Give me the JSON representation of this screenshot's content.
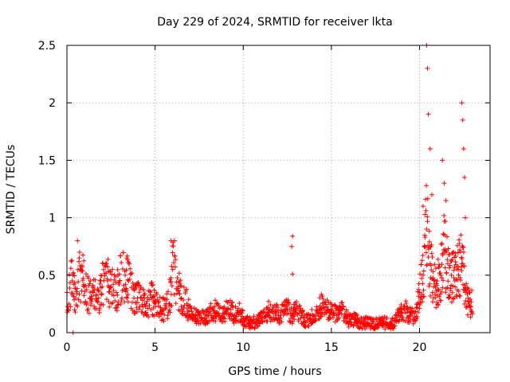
{
  "chart_data": {
    "type": "scatter",
    "title": "Day 229 of 2024, SRMTID for receiver lkta",
    "xlabel": "GPS time / hours",
    "ylabel": "SRMTID / TECUs",
    "xlim": [
      0,
      24
    ],
    "ylim": [
      0,
      2.5
    ],
    "xticks": [
      0,
      5,
      10,
      15,
      20
    ],
    "yticks": [
      0,
      0.5,
      1,
      1.5,
      2,
      2.5
    ],
    "ytick_labels": [
      "0",
      "0.5",
      "1",
      "1.5",
      "2",
      "2.5"
    ],
    "grid": true,
    "marker": "+",
    "color": "#ff0000",
    "series": [
      {
        "name": "SRMTID",
        "x": [
          0.0,
          0.3,
          0.5,
          0.8,
          1.0,
          1.3,
          1.5,
          1.8,
          2.0,
          2.3,
          2.5,
          2.8,
          3.0,
          3.3,
          3.5,
          3.8,
          4.0,
          4.3,
          4.5,
          4.8,
          5.0,
          5.3,
          5.5,
          5.8,
          6.0,
          6.3,
          6.5,
          6.8,
          7.0,
          7.3,
          7.5,
          7.8,
          8.0,
          8.3,
          8.5,
          8.8,
          9.0,
          9.3,
          9.5,
          9.8,
          10.0,
          10.3,
          10.5,
          10.8,
          11.0,
          11.3,
          11.5,
          11.8,
          12.0,
          12.3,
          12.5,
          12.8,
          13.0,
          13.3,
          13.5,
          13.8,
          14.0,
          14.3,
          14.5,
          14.8,
          15.0,
          15.3,
          15.5,
          15.8,
          16.0,
          16.3,
          16.5,
          16.8,
          17.0,
          17.3,
          17.5,
          17.8,
          18.0,
          18.3,
          18.5,
          18.8,
          19.0,
          19.3,
          19.5,
          19.8,
          20.0,
          20.2,
          20.4,
          20.6,
          20.8,
          21.0,
          21.2,
          21.4,
          21.6,
          21.8,
          22.0,
          22.2,
          22.4,
          22.6,
          22.8
        ],
        "y": [
          0.35,
          0.45,
          0.3,
          0.55,
          0.4,
          0.3,
          0.35,
          0.3,
          0.4,
          0.45,
          0.4,
          0.35,
          0.45,
          0.5,
          0.45,
          0.3,
          0.3,
          0.28,
          0.25,
          0.3,
          0.25,
          0.22,
          0.2,
          0.25,
          0.55,
          0.4,
          0.3,
          0.25,
          0.15,
          0.15,
          0.15,
          0.12,
          0.15,
          0.2,
          0.18,
          0.15,
          0.18,
          0.2,
          0.15,
          0.18,
          0.12,
          0.08,
          0.08,
          0.1,
          0.12,
          0.15,
          0.2,
          0.18,
          0.15,
          0.18,
          0.2,
          0.15,
          0.2,
          0.15,
          0.1,
          0.12,
          0.15,
          0.2,
          0.25,
          0.2,
          0.18,
          0.15,
          0.2,
          0.15,
          0.1,
          0.12,
          0.1,
          0.08,
          0.08,
          0.08,
          0.07,
          0.08,
          0.08,
          0.08,
          0.07,
          0.15,
          0.2,
          0.18,
          0.15,
          0.12,
          0.35,
          0.5,
          0.9,
          0.6,
          0.4,
          0.45,
          0.5,
          0.7,
          0.6,
          0.5,
          0.45,
          0.55,
          0.6,
          0.35,
          0.25
        ],
        "spikes": [
          {
            "x": 0.35,
            "y": 0.0
          },
          {
            "x": 0.6,
            "y": 0.8
          },
          {
            "x": 0.7,
            "y": 0.65
          },
          {
            "x": 3.4,
            "y": 0.65
          },
          {
            "x": 5.9,
            "y": 0.8
          },
          {
            "x": 6.1,
            "y": 0.8
          },
          {
            "x": 12.8,
            "y": 0.84
          },
          {
            "x": 12.75,
            "y": 0.75
          },
          {
            "x": 12.8,
            "y": 0.51
          },
          {
            "x": 20.2,
            "y": 1.1
          },
          {
            "x": 20.4,
            "y": 2.5
          },
          {
            "x": 20.45,
            "y": 2.3
          },
          {
            "x": 20.5,
            "y": 1.9
          },
          {
            "x": 20.6,
            "y": 1.6
          },
          {
            "x": 20.7,
            "y": 1.2
          },
          {
            "x": 21.3,
            "y": 1.5
          },
          {
            "x": 21.4,
            "y": 1.3
          },
          {
            "x": 21.5,
            "y": 1.15
          },
          {
            "x": 22.4,
            "y": 2.0
          },
          {
            "x": 22.45,
            "y": 1.85
          },
          {
            "x": 22.5,
            "y": 1.6
          },
          {
            "x": 22.55,
            "y": 1.35
          },
          {
            "x": 22.6,
            "y": 1.0
          }
        ]
      }
    ]
  }
}
